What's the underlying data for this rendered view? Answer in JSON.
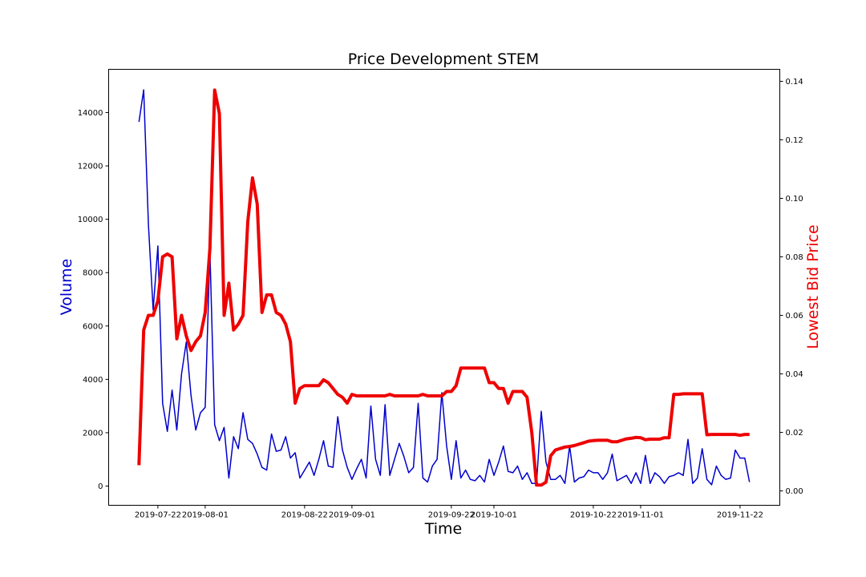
{
  "chart_data": {
    "type": "line",
    "title": "Price Development STEM",
    "xlabel": "Time",
    "ylabel_left": "Volume",
    "ylabel_right": "Lowest Bid Price",
    "x_start_date": "2019-07-18",
    "x_step": "1 day",
    "xlim_days": [
      -6.4,
      135.4
    ],
    "ylim_left": [
      -720,
      15620
    ],
    "ylim_right": [
      -0.0049,
      0.1441
    ],
    "x_ticks": [
      {
        "day": 4,
        "label": "2019-07-22"
      },
      {
        "day": 14,
        "label": "2019-08-01"
      },
      {
        "day": 35,
        "label": "2019-08-22"
      },
      {
        "day": 45,
        "label": "2019-09-01"
      },
      {
        "day": 66,
        "label": "2019-09-22"
      },
      {
        "day": 75,
        "label": "2019-10-01"
      },
      {
        "day": 96,
        "label": "2019-10-22"
      },
      {
        "day": 106,
        "label": "2019-11-01"
      },
      {
        "day": 127,
        "label": "2019-11-22"
      }
    ],
    "y_ticks_left": [
      "0",
      "2000",
      "4000",
      "6000",
      "8000",
      "10000",
      "12000",
      "14000"
    ],
    "y_ticks_right": [
      "0.00",
      "0.02",
      "0.04",
      "0.06",
      "0.08",
      "0.10",
      "0.12",
      "0.14"
    ],
    "grid": false,
    "series": [
      {
        "name": "Volume",
        "axis": "left",
        "color": "#0000cc",
        "width": 1.5,
        "values": [
          13650,
          14850,
          9800,
          6600,
          9000,
          3100,
          2050,
          3600,
          2100,
          4200,
          5400,
          3400,
          2100,
          2750,
          2950,
          8800,
          2300,
          1700,
          2200,
          300,
          1850,
          1400,
          2750,
          1750,
          1600,
          1200,
          700,
          600,
          1950,
          1300,
          1350,
          1850,
          1050,
          1250,
          300,
          600,
          900,
          400,
          1000,
          1700,
          750,
          700,
          2600,
          1350,
          700,
          250,
          650,
          1000,
          300,
          3000,
          1000,
          400,
          3050,
          400,
          1000,
          1600,
          1100,
          500,
          700,
          3100,
          300,
          150,
          750,
          1000,
          3500,
          1500,
          250,
          1700,
          300,
          600,
          250,
          200,
          400,
          150,
          1000,
          400,
          900,
          1500,
          550,
          500,
          750,
          250,
          500,
          100,
          100,
          2800,
          900,
          250,
          250,
          400,
          100,
          1500,
          150,
          300,
          350,
          600,
          500,
          500,
          250,
          500,
          1200,
          200,
          300,
          400,
          100,
          500,
          100,
          1150,
          100,
          500,
          350,
          100,
          350,
          400,
          500,
          400,
          1750,
          100,
          300,
          1400,
          250,
          50,
          750,
          400,
          250,
          300,
          1350,
          1050,
          1050,
          150
        ]
      },
      {
        "name": "Lowest Bid Price",
        "axis": "right",
        "color": "#ee0000",
        "width": 4,
        "values": [
          0.0088,
          0.055,
          0.06,
          0.06,
          0.065,
          0.08,
          0.081,
          0.08,
          0.052,
          0.06,
          0.053,
          0.048,
          0.051,
          0.053,
          0.061,
          0.083,
          0.137,
          0.129,
          0.06,
          0.071,
          0.055,
          0.057,
          0.06,
          0.092,
          0.107,
          0.098,
          0.061,
          0.067,
          0.067,
          0.061,
          0.06,
          0.057,
          0.051,
          0.03,
          0.035,
          0.036,
          0.036,
          0.036,
          0.036,
          0.038,
          0.037,
          0.035,
          0.033,
          0.032,
          0.03,
          0.033,
          0.0325,
          0.0325,
          0.0325,
          0.0325,
          0.0325,
          0.0325,
          0.0325,
          0.033,
          0.0325,
          0.0325,
          0.0325,
          0.0325,
          0.0325,
          0.0325,
          0.033,
          0.0325,
          0.0325,
          0.0325,
          0.0325,
          0.034,
          0.034,
          0.036,
          0.042,
          0.042,
          0.042,
          0.042,
          0.042,
          0.042,
          0.037,
          0.037,
          0.035,
          0.035,
          0.03,
          0.034,
          0.034,
          0.034,
          0.032,
          0.02,
          0.002,
          0.002,
          0.003,
          0.012,
          0.014,
          0.0145,
          0.015,
          0.0152,
          0.0155,
          0.016,
          0.0165,
          0.017,
          0.0172,
          0.0173,
          0.0173,
          0.0173,
          0.0168,
          0.0168,
          0.0173,
          0.0178,
          0.018,
          0.0183,
          0.0182,
          0.0175,
          0.0177,
          0.0177,
          0.0177,
          0.0182,
          0.0182,
          0.033,
          0.033,
          0.0332,
          0.0332,
          0.0332,
          0.0332,
          0.0332,
          0.0192,
          0.0193,
          0.0193,
          0.0193,
          0.0193,
          0.0193,
          0.0193,
          0.019,
          0.0193,
          0.0193
        ]
      }
    ]
  }
}
